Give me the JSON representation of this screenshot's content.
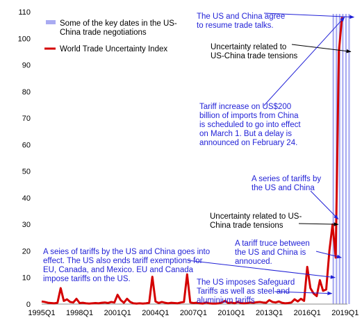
{
  "chart_data": {
    "type": "line",
    "title": "",
    "xlabel": "",
    "ylabel": "",
    "ylim": [
      0,
      110
    ],
    "yticks": [
      0,
      10,
      20,
      30,
      40,
      50,
      60,
      70,
      80,
      90,
      100,
      110
    ],
    "xticks": [
      "1995Q1",
      "1998Q1",
      "2001Q1",
      "2004Q1",
      "2007Q1",
      "2010Q1",
      "2013Q1",
      "2016Q1",
      "2019Q1"
    ],
    "legend": {
      "position": "top-left",
      "items": [
        {
          "label": "Some of the key dates in the US-China trade negotiations",
          "style": "bar",
          "color": "#a9abf2"
        },
        {
          "label": "World Trade Uncertainty Index",
          "style": "line",
          "color": "#d40000"
        }
      ]
    },
    "series": [
      {
        "name": "World Trade Uncertainty Index",
        "color": "#d40000",
        "start": "1995Q1",
        "values": [
          1.0,
          0.8,
          0.5,
          0.4,
          0.3,
          0.5,
          6.0,
          1.2,
          1.8,
          0.8,
          0.6,
          2.0,
          0.4,
          0.5,
          0.3,
          0.2,
          0.3,
          0.4,
          0.3,
          0.5,
          0.6,
          0.4,
          0.8,
          0.6,
          3.5,
          1.5,
          0.5,
          2.0,
          0.8,
          0.3,
          0.2,
          0.3,
          0.2,
          0.3,
          0.5,
          10.3,
          1.0,
          0.4,
          0.8,
          0.5,
          0.3,
          0.5,
          0.4,
          0.3,
          0.6,
          0.8,
          11.2,
          0.6,
          0.4,
          0.5,
          0.3,
          0.2,
          0.6,
          0.3,
          0.2,
          0.2,
          0.3,
          0.6,
          1.2,
          0.4,
          0.6,
          0.3,
          0.8,
          0.4,
          0.3,
          0.4,
          0.6,
          0.5,
          0.7,
          0.8,
          0.6,
          0.5,
          1.5,
          0.8,
          0.6,
          1.0,
          0.5,
          0.3,
          0.4,
          0.6,
          1.8,
          1.0,
          2.0,
          1.2,
          14.0,
          6.0,
          4.0,
          3.0,
          9.0,
          5.0,
          5.5,
          20.0,
          30.0,
          17.5,
          95.0,
          108.0
        ]
      }
    ],
    "key_dates": [
      "2018Q1",
      "2018Q2",
      "2018Q3",
      "2018Q4",
      "2019Q1",
      "2019Q2"
    ],
    "annotations": [
      {
        "lines": [
          "The US and China agree",
          "to resume trade talks."
        ],
        "color": "#1f1fd6",
        "target": {
          "x": "2019Q4",
          "y": 108
        }
      },
      {
        "lines": [
          "Uncertainty related to",
          "US-China trade tensions"
        ],
        "color": "#000000",
        "target": {
          "x": "2019Q3",
          "y": 95
        }
      },
      {
        "lines": [
          "Tariff increase on US$200",
          "billion of imports from China",
          "is scheduled to go into effect",
          "on March 1. But a delay is",
          "announced on February 24."
        ],
        "color": "#1f1fd6",
        "target": {
          "x": "2019Q1",
          "y": 108
        }
      },
      {
        "lines": [
          "A series of tariffs by",
          "the US and China"
        ],
        "color": "#1f1fd6",
        "target": {
          "x": "2018Q3",
          "y": 32
        }
      },
      {
        "lines": [
          "Uncertainty related to US-",
          "China trade tensions"
        ],
        "color": "#000000",
        "target": {
          "x": "2018Q3",
          "y": 30
        }
      },
      {
        "lines": [
          "A tariff truce between",
          "the US and China is",
          "annouced."
        ],
        "color": "#1f1fd6",
        "target": {
          "x": "2018Q4",
          "y": 17.5
        }
      },
      {
        "lines": [
          "A seies of tariffs by the US and China goes into",
          "effect. The US also ends tariff exemptions for",
          "EU, Canada, and Mexico. EU and Canada",
          "impose tariffs on the US."
        ],
        "color": "#1f1fd6",
        "target": {
          "x": "2018Q2",
          "y": 10
        }
      },
      {
        "lines": [
          "The US imposes Safeguard",
          "Tariffs as well as steel and",
          "aluminium tariffs"
        ],
        "color": "#1f1fd6",
        "target": {
          "x": "2018Q1",
          "y": 4
        }
      }
    ]
  }
}
